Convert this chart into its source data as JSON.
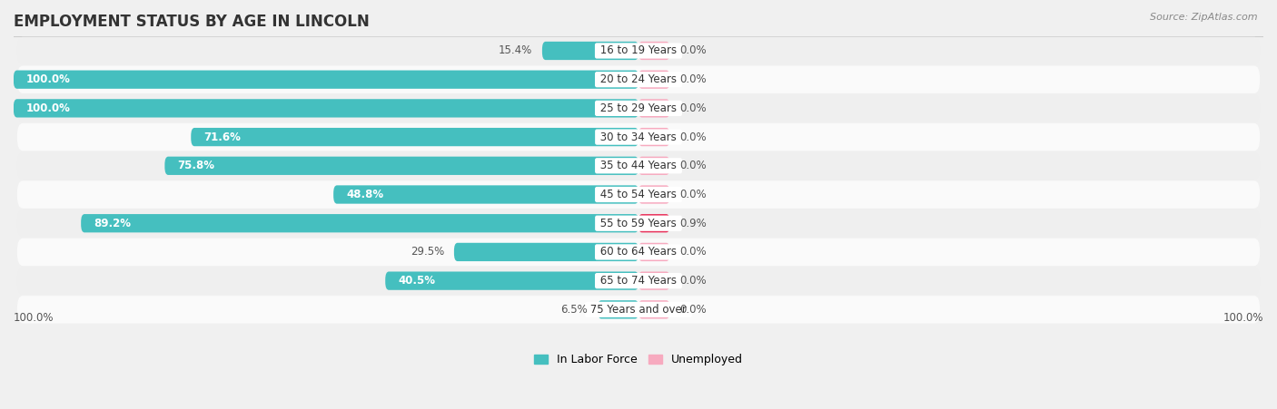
{
  "title": "EMPLOYMENT STATUS BY AGE IN LINCOLN",
  "source": "Source: ZipAtlas.com",
  "categories": [
    "16 to 19 Years",
    "20 to 24 Years",
    "25 to 29 Years",
    "30 to 34 Years",
    "35 to 44 Years",
    "45 to 54 Years",
    "55 to 59 Years",
    "60 to 64 Years",
    "65 to 74 Years",
    "75 Years and over"
  ],
  "in_labor_force": [
    15.4,
    100.0,
    100.0,
    71.6,
    75.8,
    48.8,
    89.2,
    29.5,
    40.5,
    6.5
  ],
  "unemployed": [
    0.0,
    0.0,
    0.0,
    0.0,
    0.0,
    0.0,
    0.9,
    0.0,
    0.0,
    0.0
  ],
  "labor_color": "#45BFBF",
  "unemployed_color": "#F7AABF",
  "unemployed_highlight_color": "#E8305A",
  "row_light_color": "#EFEFEF",
  "row_dark_color": "#E2E2E2",
  "title_fontsize": 12,
  "label_fontsize": 8.5,
  "source_fontsize": 8,
  "bg_color": "#F0F0F0",
  "left_axis_label": "100.0%",
  "right_axis_label": "100.0%"
}
